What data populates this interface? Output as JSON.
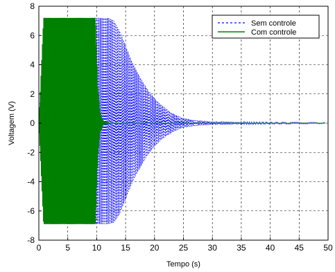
{
  "chart_data": {
    "type": "line",
    "xlabel": "Tempo (s)",
    "ylabel": "Voltagem (V)",
    "xlim": [
      0,
      50
    ],
    "ylim": [
      -8,
      8
    ],
    "xticks": [
      0,
      5,
      10,
      15,
      20,
      25,
      30,
      35,
      40,
      45,
      50
    ],
    "yticks": [
      8,
      6,
      4,
      2,
      0,
      -2,
      -4,
      -6,
      -8
    ],
    "grid": true,
    "grid_style": "dashed",
    "legend_position": "top-right",
    "series": [
      {
        "name": "Sem controle",
        "color": "#0000ff",
        "line_style": "dashed",
        "description_envelope": {
          "x": [
            0,
            1,
            10,
            11,
            12,
            13,
            14,
            15,
            16,
            17,
            18,
            19,
            20,
            21,
            22,
            23,
            24,
            25,
            27,
            30,
            35,
            40,
            45,
            49.5
          ],
          "upper": [
            0,
            7.2,
            7.2,
            7.2,
            7.2,
            7.0,
            6.3,
            5.3,
            4.3,
            3.5,
            2.8,
            2.2,
            1.7,
            1.3,
            1.0,
            0.7,
            0.5,
            0.35,
            0.2,
            0.12,
            0.08,
            0.06,
            0.05,
            0.04
          ],
          "lower": [
            0,
            -6.9,
            -6.9,
            -6.9,
            -6.9,
            -6.8,
            -6.2,
            -5.2,
            -4.2,
            -3.4,
            -2.7,
            -2.1,
            -1.6,
            -1.2,
            -0.9,
            -0.65,
            -0.45,
            -0.3,
            -0.18,
            -0.1,
            -0.07,
            -0.05,
            -0.04,
            -0.03
          ]
        }
      },
      {
        "name": "Com controle",
        "color": "#008000",
        "line_style": "solid",
        "description_envelope": {
          "x": [
            0,
            0.8,
            9.8,
            10.2,
            10.6,
            11.0,
            11.5,
            12.5,
            49.5
          ],
          "upper": [
            0,
            7.2,
            7.2,
            2.5,
            0.8,
            0.25,
            0.05,
            0.0,
            0.0
          ],
          "lower": [
            0,
            -6.9,
            -6.9,
            -2.4,
            -0.7,
            -0.2,
            -0.05,
            0.0,
            0.0
          ]
        }
      }
    ]
  }
}
